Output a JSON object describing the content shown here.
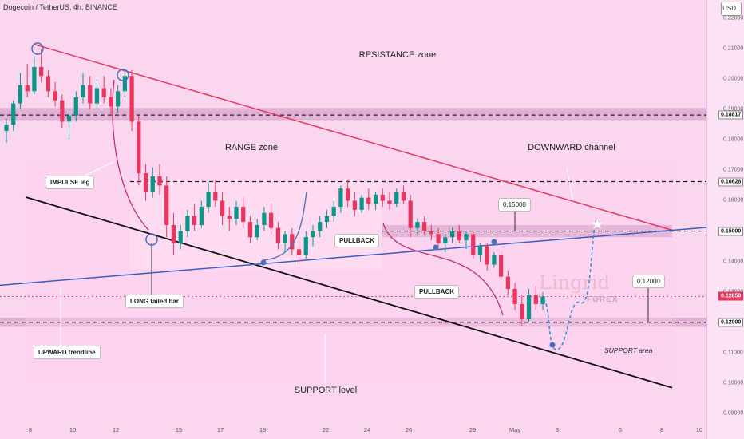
{
  "header": {
    "title": "Dogecoin / TetherUS, 4h, BINANCE"
  },
  "quote_currency": "USDT",
  "colors": {
    "background": "#fbd6ef",
    "bull": "#0d9488",
    "bear": "#e8365e",
    "resistance": "#e8365e",
    "channel_lower": "#111111",
    "trendline": "#3b5fc0"
  },
  "chart_data": {
    "type": "candlestick",
    "symbol": "Dogecoin / TetherUS",
    "interval": "4h",
    "exchange": "BINANCE",
    "y_axis": {
      "min": 0.09,
      "max": 0.22,
      "ticks": [
        "0.22000",
        "0.21000",
        "0.20000",
        "0.19000",
        "0.18000",
        "0.17000",
        "0.16000",
        "0.15000",
        "0.14000",
        "0.13000",
        "0.12000",
        "0.11000",
        "0.10000",
        "0.09000"
      ]
    },
    "x_axis": {
      "ticks": [
        "8",
        "10",
        "12",
        "15",
        "17",
        "19",
        "22",
        "24",
        "26",
        "29",
        "May",
        "3",
        "6",
        "8",
        "10"
      ]
    },
    "price_tags": [
      {
        "label": "0.18817",
        "value": 0.18817,
        "style": "level"
      },
      {
        "label": "0.16628",
        "value": 0.16628,
        "style": "level"
      },
      {
        "label": "0.15000",
        "value": 0.15,
        "style": "level"
      },
      {
        "label": "0.12850",
        "value": 0.1285,
        "style": "current"
      },
      {
        "label": "0.12000",
        "value": 0.12,
        "style": "level"
      }
    ],
    "zones": [
      {
        "name": "resistance",
        "from": 0.1865,
        "to": 0.1905
      },
      {
        "name": "support",
        "from": 0.1185,
        "to": 0.1215
      },
      {
        "name": "range",
        "from": 0.1375,
        "to": 0.1665
      }
    ],
    "candles": [
      [
        0.183,
        0.187,
        0.179,
        0.185
      ],
      [
        0.185,
        0.193,
        0.183,
        0.192
      ],
      [
        0.192,
        0.202,
        0.19,
        0.198
      ],
      [
        0.198,
        0.205,
        0.194,
        0.196
      ],
      [
        0.196,
        0.207,
        0.195,
        0.204
      ],
      [
        0.204,
        0.21,
        0.199,
        0.201
      ],
      [
        0.201,
        0.203,
        0.194,
        0.196
      ],
      [
        0.196,
        0.199,
        0.191,
        0.193
      ],
      [
        0.193,
        0.195,
        0.184,
        0.186
      ],
      [
        0.186,
        0.19,
        0.18,
        0.188
      ],
      [
        0.188,
        0.196,
        0.186,
        0.194
      ],
      [
        0.194,
        0.202,
        0.192,
        0.198
      ],
      [
        0.198,
        0.201,
        0.19,
        0.192
      ],
      [
        0.192,
        0.2,
        0.19,
        0.197
      ],
      [
        0.197,
        0.201,
        0.192,
        0.194
      ],
      [
        0.194,
        0.197,
        0.188,
        0.191
      ],
      [
        0.191,
        0.198,
        0.189,
        0.196
      ],
      [
        0.196,
        0.203,
        0.194,
        0.201
      ],
      [
        0.201,
        0.203,
        0.183,
        0.186
      ],
      [
        0.186,
        0.188,
        0.165,
        0.169
      ],
      [
        0.169,
        0.172,
        0.16,
        0.163
      ],
      [
        0.163,
        0.171,
        0.161,
        0.168
      ],
      [
        0.168,
        0.172,
        0.162,
        0.165
      ],
      [
        0.165,
        0.168,
        0.148,
        0.152
      ],
      [
        0.152,
        0.156,
        0.142,
        0.146
      ],
      [
        0.146,
        0.152,
        0.144,
        0.15
      ],
      [
        0.15,
        0.157,
        0.148,
        0.155
      ],
      [
        0.155,
        0.159,
        0.15,
        0.152
      ],
      [
        0.152,
        0.16,
        0.151,
        0.158
      ],
      [
        0.158,
        0.166,
        0.156,
        0.163
      ],
      [
        0.163,
        0.167,
        0.158,
        0.16
      ],
      [
        0.16,
        0.163,
        0.152,
        0.155
      ],
      [
        0.155,
        0.158,
        0.15,
        0.154
      ],
      [
        0.154,
        0.16,
        0.152,
        0.158
      ],
      [
        0.158,
        0.161,
        0.151,
        0.153
      ],
      [
        0.153,
        0.155,
        0.146,
        0.148
      ],
      [
        0.148,
        0.154,
        0.147,
        0.152
      ],
      [
        0.152,
        0.158,
        0.15,
        0.156
      ],
      [
        0.156,
        0.159,
        0.149,
        0.151
      ],
      [
        0.151,
        0.153,
        0.144,
        0.146
      ],
      [
        0.146,
        0.15,
        0.143,
        0.149
      ],
      [
        0.149,
        0.151,
        0.142,
        0.144
      ],
      [
        0.144,
        0.147,
        0.139,
        0.142
      ],
      [
        0.142,
        0.15,
        0.141,
        0.148
      ],
      [
        0.148,
        0.152,
        0.145,
        0.15
      ],
      [
        0.15,
        0.155,
        0.148,
        0.153
      ],
      [
        0.153,
        0.157,
        0.151,
        0.155
      ],
      [
        0.155,
        0.16,
        0.153,
        0.158
      ],
      [
        0.158,
        0.165,
        0.156,
        0.164
      ],
      [
        0.164,
        0.167,
        0.158,
        0.16
      ],
      [
        0.16,
        0.163,
        0.155,
        0.157
      ],
      [
        0.157,
        0.162,
        0.156,
        0.161
      ],
      [
        0.161,
        0.164,
        0.157,
        0.159
      ],
      [
        0.159,
        0.163,
        0.157,
        0.162
      ],
      [
        0.162,
        0.164,
        0.158,
        0.16
      ],
      [
        0.16,
        0.163,
        0.157,
        0.159
      ],
      [
        0.159,
        0.164,
        0.158,
        0.163
      ],
      [
        0.163,
        0.165,
        0.159,
        0.16
      ],
      [
        0.16,
        0.162,
        0.148,
        0.151
      ],
      [
        0.151,
        0.154,
        0.149,
        0.153
      ],
      [
        0.153,
        0.155,
        0.149,
        0.15
      ],
      [
        0.15,
        0.152,
        0.147,
        0.149
      ],
      [
        0.149,
        0.151,
        0.145,
        0.146
      ],
      [
        0.146,
        0.149,
        0.143,
        0.148
      ],
      [
        0.148,
        0.151,
        0.146,
        0.15
      ],
      [
        0.15,
        0.152,
        0.146,
        0.147
      ],
      [
        0.147,
        0.15,
        0.144,
        0.149
      ],
      [
        0.149,
        0.15,
        0.141,
        0.142
      ],
      [
        0.142,
        0.146,
        0.14,
        0.145
      ],
      [
        0.145,
        0.146,
        0.137,
        0.139
      ],
      [
        0.139,
        0.143,
        0.138,
        0.142
      ],
      [
        0.142,
        0.144,
        0.134,
        0.135
      ],
      [
        0.135,
        0.137,
        0.129,
        0.131
      ],
      [
        0.131,
        0.133,
        0.124,
        0.126
      ],
      [
        0.126,
        0.129,
        0.119,
        0.121
      ],
      [
        0.121,
        0.131,
        0.12,
        0.129
      ],
      [
        0.129,
        0.132,
        0.124,
        0.126
      ],
      [
        0.126,
        0.13,
        0.124,
        0.1285
      ]
    ]
  },
  "annotations": {
    "resistance_zone": "RESISTANCE zone",
    "range_zone": "RANGE zone",
    "downward_channel": "DOWNWARD channel",
    "impulse_leg": "IMPULSE leg",
    "long_tailed_bar": "LONG tailed bar",
    "pullback_1": "PULLBACK",
    "pullback_2": "PULLBACK",
    "upward_trendline": "UPWARD trendline",
    "support_level": "SUPPORT level",
    "support_area": "SUPPORT area",
    "target_015": "0.15000",
    "target_012": "0.12000"
  },
  "watermark": {
    "brand": "Lingrid",
    "sub": "FOREX"
  }
}
